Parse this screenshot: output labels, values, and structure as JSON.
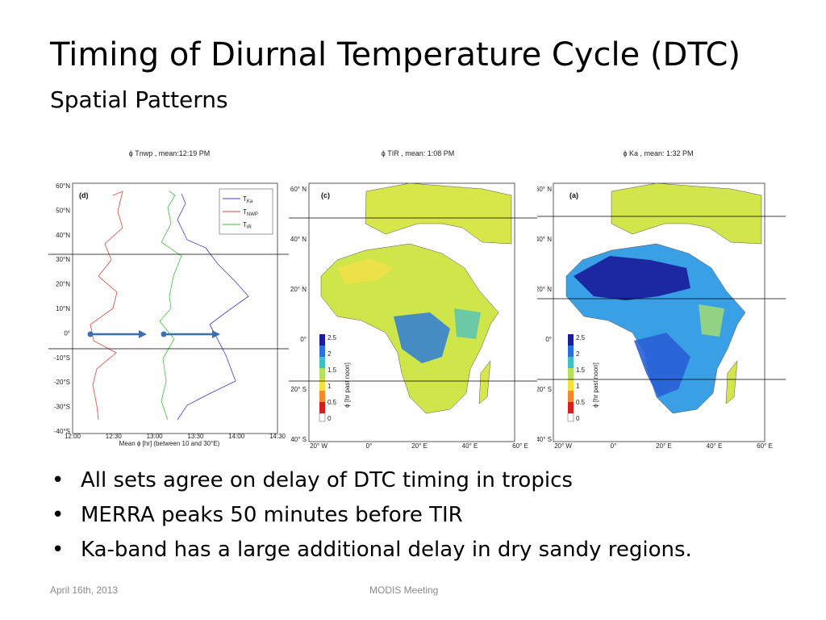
{
  "slide": {
    "title": "Timing of Diurnal Temperature Cycle (DTC)",
    "subtitle": "Spatial Patterns",
    "bullets": [
      "All sets agree on delay of DTC timing in tropics",
      "MERRA peaks 50 minutes before TIR",
      "Ka-band has a large additional delay in dry sandy regions."
    ],
    "bullet_glyph": "•",
    "footer_left": "April 16th, 2013",
    "footer_center": "MODIS Meeting"
  },
  "figures": {
    "profile": {
      "panel_title": "ϕ Tnwp , mean:12:19 PM",
      "panel_label": "(d)",
      "xlabel": "Mean ϕ [hr] (between 10 and 30°E)",
      "xticks": [
        "12:00",
        "12:30",
        "13:00",
        "13:30",
        "14:00",
        "14:30"
      ],
      "yticks": [
        "60°N",
        "50°N",
        "40°N",
        "30°N",
        "20°N",
        "10°N",
        "0°",
        "-10°S",
        "-20°S",
        "-30°S",
        "-40°S"
      ],
      "legend": [
        "T",
        "Ka",
        "T",
        "NWP",
        "T",
        "IR"
      ],
      "colors": {
        "Ka": "#3b3bd6",
        "NWP": "#e0453a",
        "IR": "#3fc43f",
        "arrow": "#3a6fb6"
      }
    },
    "map_tir": {
      "panel_title": "ϕ TIR , mean: 1:08 PM",
      "panel_label": "(c)"
    },
    "map_ka": {
      "panel_title": "ϕ Ka , mean: 1:32 PM",
      "panel_label": "(a)"
    },
    "map_axes": {
      "lat_ticks": [
        "60° N",
        "40° N",
        "20° N",
        "0°",
        "20° S",
        "40° S"
      ],
      "lon_ticks": [
        "20° W",
        "0°",
        "20° E",
        "40° E",
        "60° E"
      ],
      "colorbar_ticks": [
        "2.5",
        "2",
        "1.5",
        "1",
        "0.5",
        "0"
      ],
      "colorbar_label": "ϕ [hr past noon]"
    }
  }
}
